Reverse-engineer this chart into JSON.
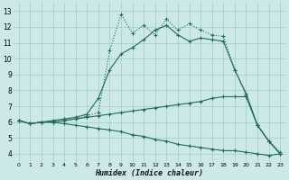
{
  "xlabel": "Humidex (Indice chaleur)",
  "xlim": [
    -0.5,
    23.5
  ],
  "ylim": [
    3.5,
    13.5
  ],
  "xticks": [
    0,
    1,
    2,
    3,
    4,
    5,
    6,
    7,
    8,
    9,
    10,
    11,
    12,
    13,
    14,
    15,
    16,
    17,
    18,
    19,
    20,
    21,
    22,
    23
  ],
  "yticks": [
    4,
    5,
    6,
    7,
    8,
    9,
    10,
    11,
    12,
    13
  ],
  "bg_color": "#cce9e8",
  "grid_color": "#9dcdcc",
  "line_color": "#1f6b5e",
  "line1_y": [
    6.1,
    5.9,
    6.0,
    6.1,
    6.2,
    6.3,
    6.5,
    7.5,
    9.3,
    10.3,
    10.7,
    11.2,
    11.8,
    12.1,
    11.5,
    11.1,
    11.3,
    11.2,
    11.1,
    9.3,
    7.8,
    5.8,
    4.8,
    4.0
  ],
  "line2_y": [
    6.1,
    5.9,
    6.0,
    6.0,
    6.1,
    6.2,
    6.4,
    6.6,
    10.5,
    12.8,
    11.6,
    12.1,
    11.5,
    12.5,
    11.8,
    12.2,
    11.8,
    11.5,
    11.4,
    9.3,
    7.7,
    5.8,
    4.8,
    4.1
  ],
  "line3_y": [
    6.1,
    5.9,
    6.0,
    6.0,
    6.1,
    6.2,
    6.3,
    6.4,
    6.5,
    6.6,
    6.7,
    6.8,
    6.9,
    7.0,
    7.1,
    7.2,
    7.3,
    7.5,
    7.6,
    7.6,
    7.6,
    5.8,
    4.8,
    4.0
  ],
  "line4_y": [
    6.1,
    5.9,
    6.0,
    6.0,
    5.9,
    5.8,
    5.7,
    5.6,
    5.5,
    5.4,
    5.2,
    5.1,
    4.9,
    4.8,
    4.6,
    4.5,
    4.4,
    4.3,
    4.2,
    4.2,
    4.1,
    4.0,
    3.9,
    4.0
  ]
}
